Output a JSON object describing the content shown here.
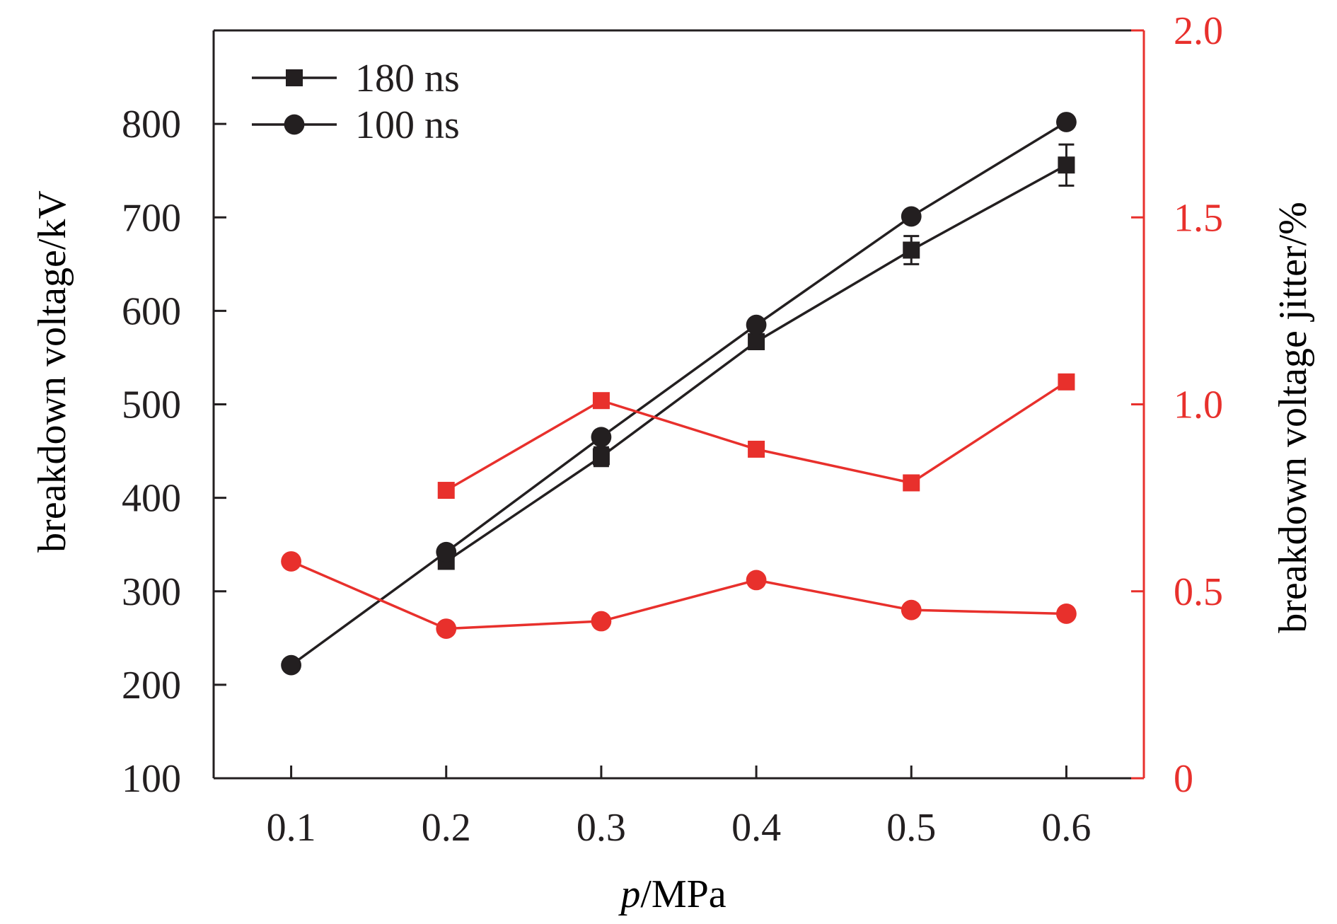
{
  "chart_data": {
    "type": "line",
    "title": "",
    "xlabel_italic": "p",
    "xlabel_rest": "/MPa",
    "ylabel_left": "breakdown voltage/kV",
    "ylabel_right": "breakdown voltage jitter/%",
    "xlim": [
      0.05,
      0.65
    ],
    "ylim_left": [
      100,
      900
    ],
    "ylim_right": [
      0,
      2.0
    ],
    "x_ticks": [
      "0.1",
      "0.2",
      "0.3",
      "0.4",
      "0.5",
      "0.6"
    ],
    "y_ticks_left": [
      "100",
      "200",
      "300",
      "400",
      "500",
      "600",
      "700",
      "800"
    ],
    "y_ticks_right": [
      "0",
      "0.5",
      "1.0",
      "1.5",
      "2.0"
    ],
    "grid": false,
    "legend_position": "top-left",
    "colors": {
      "voltage": "#231f20",
      "jitter": "#e8302c"
    },
    "series": [
      {
        "name": "180 ns",
        "marker": "square",
        "axis": "left",
        "x": [
          0.2,
          0.3,
          0.4,
          0.5,
          0.6
        ],
        "values": [
          332,
          444,
          567,
          665,
          756
        ],
        "error": [
          5,
          10,
          8,
          15,
          22
        ]
      },
      {
        "name": "100 ns",
        "marker": "circle",
        "axis": "left",
        "x": [
          0.1,
          0.2,
          0.3,
          0.4,
          0.5,
          0.6
        ],
        "values": [
          221,
          342,
          465,
          585,
          701,
          802
        ]
      },
      {
        "marker": "square",
        "axis": "right",
        "x": [
          0.2,
          0.3,
          0.4,
          0.5,
          0.6
        ],
        "values": [
          0.77,
          1.01,
          0.88,
          0.79,
          1.06
        ]
      },
      {
        "marker": "circle",
        "axis": "right",
        "x": [
          0.1,
          0.2,
          0.3,
          0.4,
          0.5,
          0.6
        ],
        "values": [
          0.58,
          0.4,
          0.42,
          0.53,
          0.45,
          0.44
        ]
      }
    ]
  }
}
